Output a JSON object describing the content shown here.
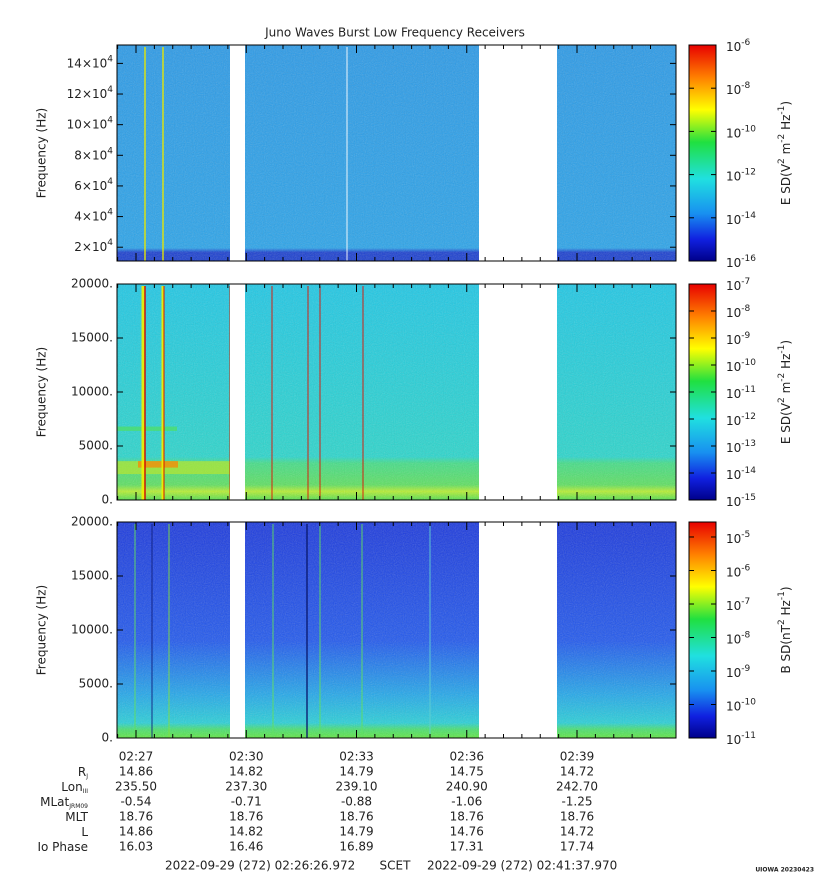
{
  "title": "Juno Waves Burst Low Frequency Receivers",
  "chart_data": [
    {
      "type": "spectrogram",
      "ylabel": "Frequency (Hz)",
      "ylim": [
        11000,
        152000
      ],
      "yticks": [
        {
          "value": 20000,
          "label": "2×10",
          "exp": "4"
        },
        {
          "value": 40000,
          "label": "4×10",
          "exp": "4"
        },
        {
          "value": 60000,
          "label": "6×10",
          "exp": "4"
        },
        {
          "value": 80000,
          "label": "8×10",
          "exp": "4"
        },
        {
          "value": 100000,
          "label": "10×10",
          "exp": "4"
        },
        {
          "value": 120000,
          "label": "12×10",
          "exp": "4"
        },
        {
          "value": 140000,
          "label": "14×10",
          "exp": "4"
        }
      ],
      "log_z": true,
      "zlim": [
        1e-16,
        1e-06
      ],
      "zticks": [
        {
          "value": 1e-16,
          "label": "10",
          "exp": "-16"
        },
        {
          "value": 1e-14,
          "label": "10",
          "exp": "-14"
        },
        {
          "value": 1e-12,
          "label": "10",
          "exp": "-12"
        },
        {
          "value": 1e-10,
          "label": "10",
          "exp": "-10"
        },
        {
          "value": 1e-08,
          "label": "10",
          "exp": "-8"
        },
        {
          "value": 1e-06,
          "label": "10",
          "exp": "-6"
        }
      ],
      "zlabel": [
        "E SD(V",
        "2",
        " m",
        "-2",
        " Hz",
        "-1",
        ")"
      ]
    },
    {
      "type": "spectrogram",
      "ylabel": "Frequency (Hz)",
      "ylim": [
        0,
        20000
      ],
      "yticks": [
        {
          "value": 0,
          "label": "0."
        },
        {
          "value": 5000,
          "label": "5000."
        },
        {
          "value": 10000,
          "label": "10000."
        },
        {
          "value": 15000,
          "label": "15000."
        },
        {
          "value": 20000,
          "label": "20000."
        }
      ],
      "log_z": true,
      "zlim": [
        1e-15,
        1e-07
      ],
      "zticks": [
        {
          "value": 1e-15,
          "label": "10",
          "exp": "-15"
        },
        {
          "value": 1e-14,
          "label": "10",
          "exp": "-14"
        },
        {
          "value": 1e-13,
          "label": "10",
          "exp": "-13"
        },
        {
          "value": 1e-12,
          "label": "10",
          "exp": "-12"
        },
        {
          "value": 1e-11,
          "label": "10",
          "exp": "-11"
        },
        {
          "value": 1e-10,
          "label": "10",
          "exp": "-10"
        },
        {
          "value": 1e-09,
          "label": "10",
          "exp": "-9"
        },
        {
          "value": 1e-08,
          "label": "10",
          "exp": "-8"
        },
        {
          "value": 1e-07,
          "label": "10",
          "exp": "-7"
        }
      ],
      "zlabel": [
        "E SD(V",
        "2",
        " m",
        "-2",
        " Hz",
        "-1",
        ")"
      ]
    },
    {
      "type": "spectrogram",
      "ylabel": "Frequency (Hz)",
      "ylim": [
        0,
        20000
      ],
      "yticks": [
        {
          "value": 0,
          "label": "0."
        },
        {
          "value": 5000,
          "label": "5000."
        },
        {
          "value": 10000,
          "label": "10000."
        },
        {
          "value": 15000,
          "label": "15000."
        },
        {
          "value": 20000,
          "label": "20000."
        }
      ],
      "log_z": true,
      "zlim": [
        1e-11,
        2.8e-05
      ],
      "zticks": [
        {
          "value": 1e-11,
          "label": "10",
          "exp": "-11"
        },
        {
          "value": 1e-10,
          "label": "10",
          "exp": "-10"
        },
        {
          "value": 1e-09,
          "label": "10",
          "exp": "-9"
        },
        {
          "value": 1e-08,
          "label": "10",
          "exp": "-8"
        },
        {
          "value": 1e-07,
          "label": "10",
          "exp": "-7"
        },
        {
          "value": 1e-06,
          "label": "10",
          "exp": "-6"
        },
        {
          "value": 1e-05,
          "label": "10",
          "exp": "-5"
        }
      ],
      "zlabel": [
        "B SD(nT",
        "2",
        " Hz",
        "-1",
        ")"
      ]
    }
  ],
  "xticks": [
    "02:27",
    "02:30",
    "02:33",
    "02:36",
    "02:39"
  ],
  "ephemeris": [
    {
      "label": "R",
      "sub": "J",
      "values": [
        "14.86",
        "14.82",
        "14.79",
        "14.75",
        "14.72"
      ]
    },
    {
      "label": "Lon",
      "sub": "III",
      "values": [
        "235.50",
        "237.30",
        "239.10",
        "240.90",
        "242.70"
      ]
    },
    {
      "label": "MLat",
      "sub": "JRM09",
      "values": [
        "-0.54",
        "-0.71",
        "-0.88",
        "-1.06",
        "-1.25"
      ]
    },
    {
      "label": "MLT",
      "values": [
        "18.76",
        "18.76",
        "18.76",
        "18.76",
        "18.76"
      ]
    },
    {
      "label": "L",
      "values": [
        "14.86",
        "14.82",
        "14.79",
        "14.76",
        "14.72"
      ]
    },
    {
      "label": "Io Phase",
      "values": [
        "16.03",
        "16.46",
        "16.89",
        "17.31",
        "17.74"
      ]
    }
  ],
  "footer": {
    "start": "2022-09-29 (272) 02:26:26.972",
    "frame": "SCET",
    "end": "2022-09-29 (272) 02:41:37.970"
  },
  "credit": "UIOWA 20230423"
}
